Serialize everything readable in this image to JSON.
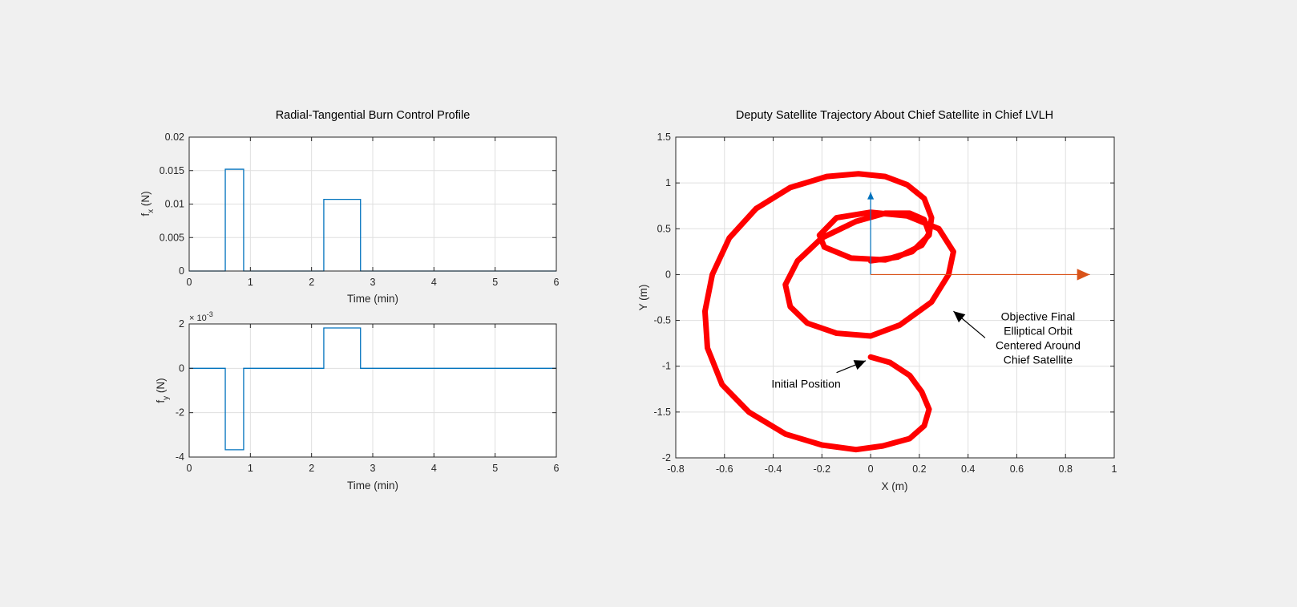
{
  "colors": {
    "figure_background": "#f0f0f0",
    "axes_background": "#ffffff",
    "grid": "#dfdfdf",
    "axis": "#262626",
    "control_line": "#0072bd",
    "trajectory": "#ff0000",
    "y_axis_arrow": "#0072bd",
    "x_axis_arrow": "#d95319",
    "annotation_arrow": "#000000"
  },
  "chart_data": [
    {
      "id": "fx",
      "type": "line",
      "title": "Radial-Tangential Burn Control Profile",
      "xlabel": "Time (min)",
      "ylabel_main": "f",
      "ylabel_sub": "x",
      "ylabel_unit": " (N)",
      "xlim": [
        0,
        6
      ],
      "ylim": [
        0,
        0.02
      ],
      "xticks": [
        0,
        1,
        2,
        3,
        4,
        5,
        6
      ],
      "yticks": [
        0,
        0.005,
        0.01,
        0.015,
        0.02
      ],
      "ytick_labels": [
        "0",
        "0.005",
        "0.01",
        "0.015",
        "0.02"
      ],
      "grid": true,
      "series": [
        {
          "x": [
            0,
            0.59,
            0.59,
            0.89,
            0.89,
            2.2,
            2.2,
            2.8,
            2.8,
            6
          ],
          "y": [
            0,
            0,
            0.0152,
            0.0152,
            0,
            0,
            0.0107,
            0.0107,
            0,
            0
          ]
        }
      ]
    },
    {
      "id": "fy",
      "type": "line",
      "title": "",
      "xlabel": "Time (min)",
      "ylabel_main": "f",
      "ylabel_sub": "y",
      "ylabel_unit": " (N)",
      "exponent_base": "× 10",
      "exponent_power": "-3",
      "xlim": [
        0,
        6
      ],
      "ylim": [
        -0.004,
        0.002
      ],
      "xticks": [
        0,
        1,
        2,
        3,
        4,
        5,
        6
      ],
      "yticks": [
        -0.004,
        -0.002,
        0,
        0.002
      ],
      "ytick_labels": [
        "-4",
        "-2",
        "0",
        "2"
      ],
      "grid": true,
      "series": [
        {
          "x": [
            0,
            0.59,
            0.59,
            0.89,
            0.89,
            2.2,
            2.2,
            2.8,
            2.8,
            6
          ],
          "y": [
            0,
            0,
            -0.00367,
            -0.00367,
            0,
            0,
            0.00182,
            0.00182,
            0,
            0
          ]
        }
      ]
    },
    {
      "id": "trajectory",
      "type": "line",
      "title": "Deputy Satellite Trajectory About Chief Satellite in Chief LVLH",
      "xlabel": "X (m)",
      "ylabel": "Y (m)",
      "xlim": [
        -0.8,
        1
      ],
      "ylim": [
        -2,
        1.5
      ],
      "xticks": [
        -0.8,
        -0.6,
        -0.4,
        -0.2,
        0,
        0.2,
        0.4,
        0.6,
        0.8,
        1
      ],
      "yticks": [
        -2,
        -1.5,
        -1,
        -0.5,
        0,
        0.5,
        1,
        1.5
      ],
      "grid": true,
      "series": [
        {
          "x": [
            0,
            0.08,
            0.16,
            0.21,
            0.24,
            0.22,
            0.16,
            0.05,
            -0.06,
            -0.2,
            -0.35,
            -0.5,
            -0.61,
            -0.67,
            -0.68,
            -0.65,
            -0.58,
            -0.47,
            -0.33,
            -0.18,
            -0.05,
            0.06,
            0.15,
            0.22,
            0.25,
            0.24,
            0.17,
            0.06,
            -0.08,
            -0.19,
            -0.21,
            -0.14,
            0.0,
            0.15,
            0.28,
            0.34,
            0.32,
            0.25,
            0.12,
            0.0,
            -0.14,
            -0.26,
            -0.33,
            -0.35,
            -0.3,
            -0.2,
            -0.06,
            0.06,
            0.16,
            0.22,
            0.24,
            0.21,
            0.11,
            0.0
          ],
          "y": [
            -0.9,
            -0.96,
            -1.1,
            -1.28,
            -1.47,
            -1.65,
            -1.79,
            -1.87,
            -1.91,
            -1.86,
            -1.74,
            -1.5,
            -1.2,
            -0.8,
            -0.4,
            0.0,
            0.4,
            0.72,
            0.95,
            1.07,
            1.1,
            1.07,
            0.98,
            0.83,
            0.62,
            0.43,
            0.25,
            0.16,
            0.18,
            0.3,
            0.43,
            0.62,
            0.68,
            0.64,
            0.5,
            0.25,
            0.0,
            -0.3,
            -0.55,
            -0.67,
            -0.64,
            -0.53,
            -0.35,
            -0.11,
            0.15,
            0.4,
            0.58,
            0.67,
            0.67,
            0.6,
            0.45,
            0.32,
            0.19,
            0.15
          ]
        }
      ],
      "axis_arrows": {
        "y_arrow": {
          "x": [
            0,
            0
          ],
          "y": [
            0,
            0.9
          ]
        },
        "x_arrow": {
          "x": [
            0,
            0.9
          ],
          "y": [
            0,
            0
          ]
        }
      },
      "annotations": [
        {
          "lines": [
            "Initial Position"
          ],
          "arrow_from": [
            -0.14,
            -1.07
          ],
          "arrow_to": [
            -0.02,
            -0.94
          ]
        },
        {
          "lines": [
            "Objective Final",
            "Elliptical Orbit",
            "Centered Around",
            "Chief Satellite"
          ],
          "arrow_from": [
            0.47,
            -0.69
          ],
          "arrow_to": [
            0.34,
            -0.4
          ]
        }
      ]
    }
  ]
}
